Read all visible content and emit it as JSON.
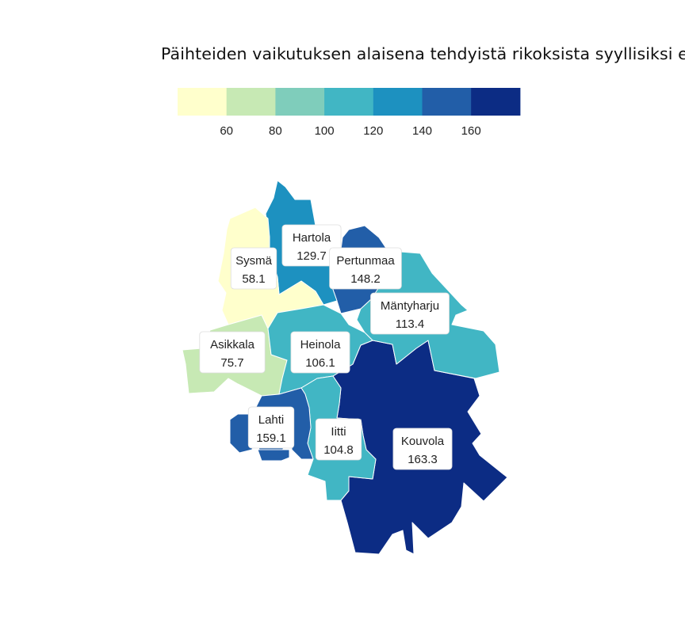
{
  "title": "Päihteiden vaikutuksen alaisena tehdyistä rikoksista syyllisiksi e",
  "legend": {
    "ticks": [
      "60",
      "80",
      "100",
      "120",
      "140",
      "160"
    ],
    "colors": [
      "#ffffcc",
      "#c7e9b4",
      "#7fcdbb",
      "#41b6c4",
      "#1d91c0",
      "#225ea8",
      "#0c2c84"
    ]
  },
  "regions": [
    {
      "name": "Sysmä",
      "value": "58.1",
      "color": "#ffffcc"
    },
    {
      "name": "Hartola",
      "value": "129.7",
      "color": "#1d91c0"
    },
    {
      "name": "Pertunmaa",
      "value": "148.2",
      "color": "#225ea8"
    },
    {
      "name": "Mäntyharju",
      "value": "113.4",
      "color": "#41b6c4"
    },
    {
      "name": "Asikkala",
      "value": "75.7",
      "color": "#c7e9b4"
    },
    {
      "name": "Heinola",
      "value": "106.1",
      "color": "#41b6c4"
    },
    {
      "name": "Lahti",
      "value": "159.1",
      "color": "#225ea8"
    },
    {
      "name": "Iitti",
      "value": "104.8",
      "color": "#41b6c4"
    },
    {
      "name": "Kouvola",
      "value": "163.3",
      "color": "#0c2c84"
    }
  ]
}
